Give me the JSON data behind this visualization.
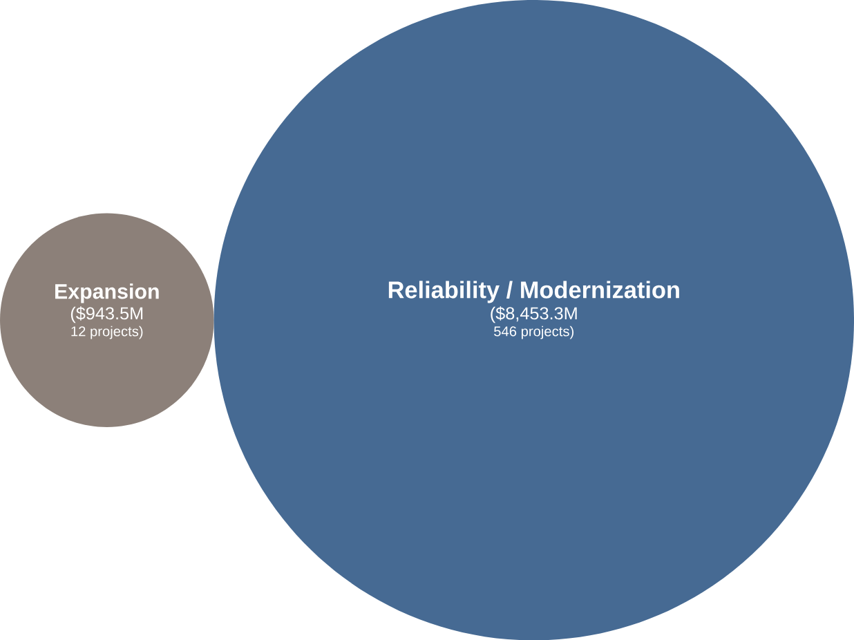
{
  "chart_data": {
    "type": "other",
    "categories": [
      "Expansion",
      "Reliability / Modernization"
    ],
    "values": [
      943.5,
      8453.3
    ],
    "colors": [
      "#8c8079",
      "#466a93"
    ],
    "value_labels": [
      "($943.5M",
      "($8,453.3M"
    ],
    "annotations": [
      "12 projects)",
      "546 projects)"
    ]
  }
}
